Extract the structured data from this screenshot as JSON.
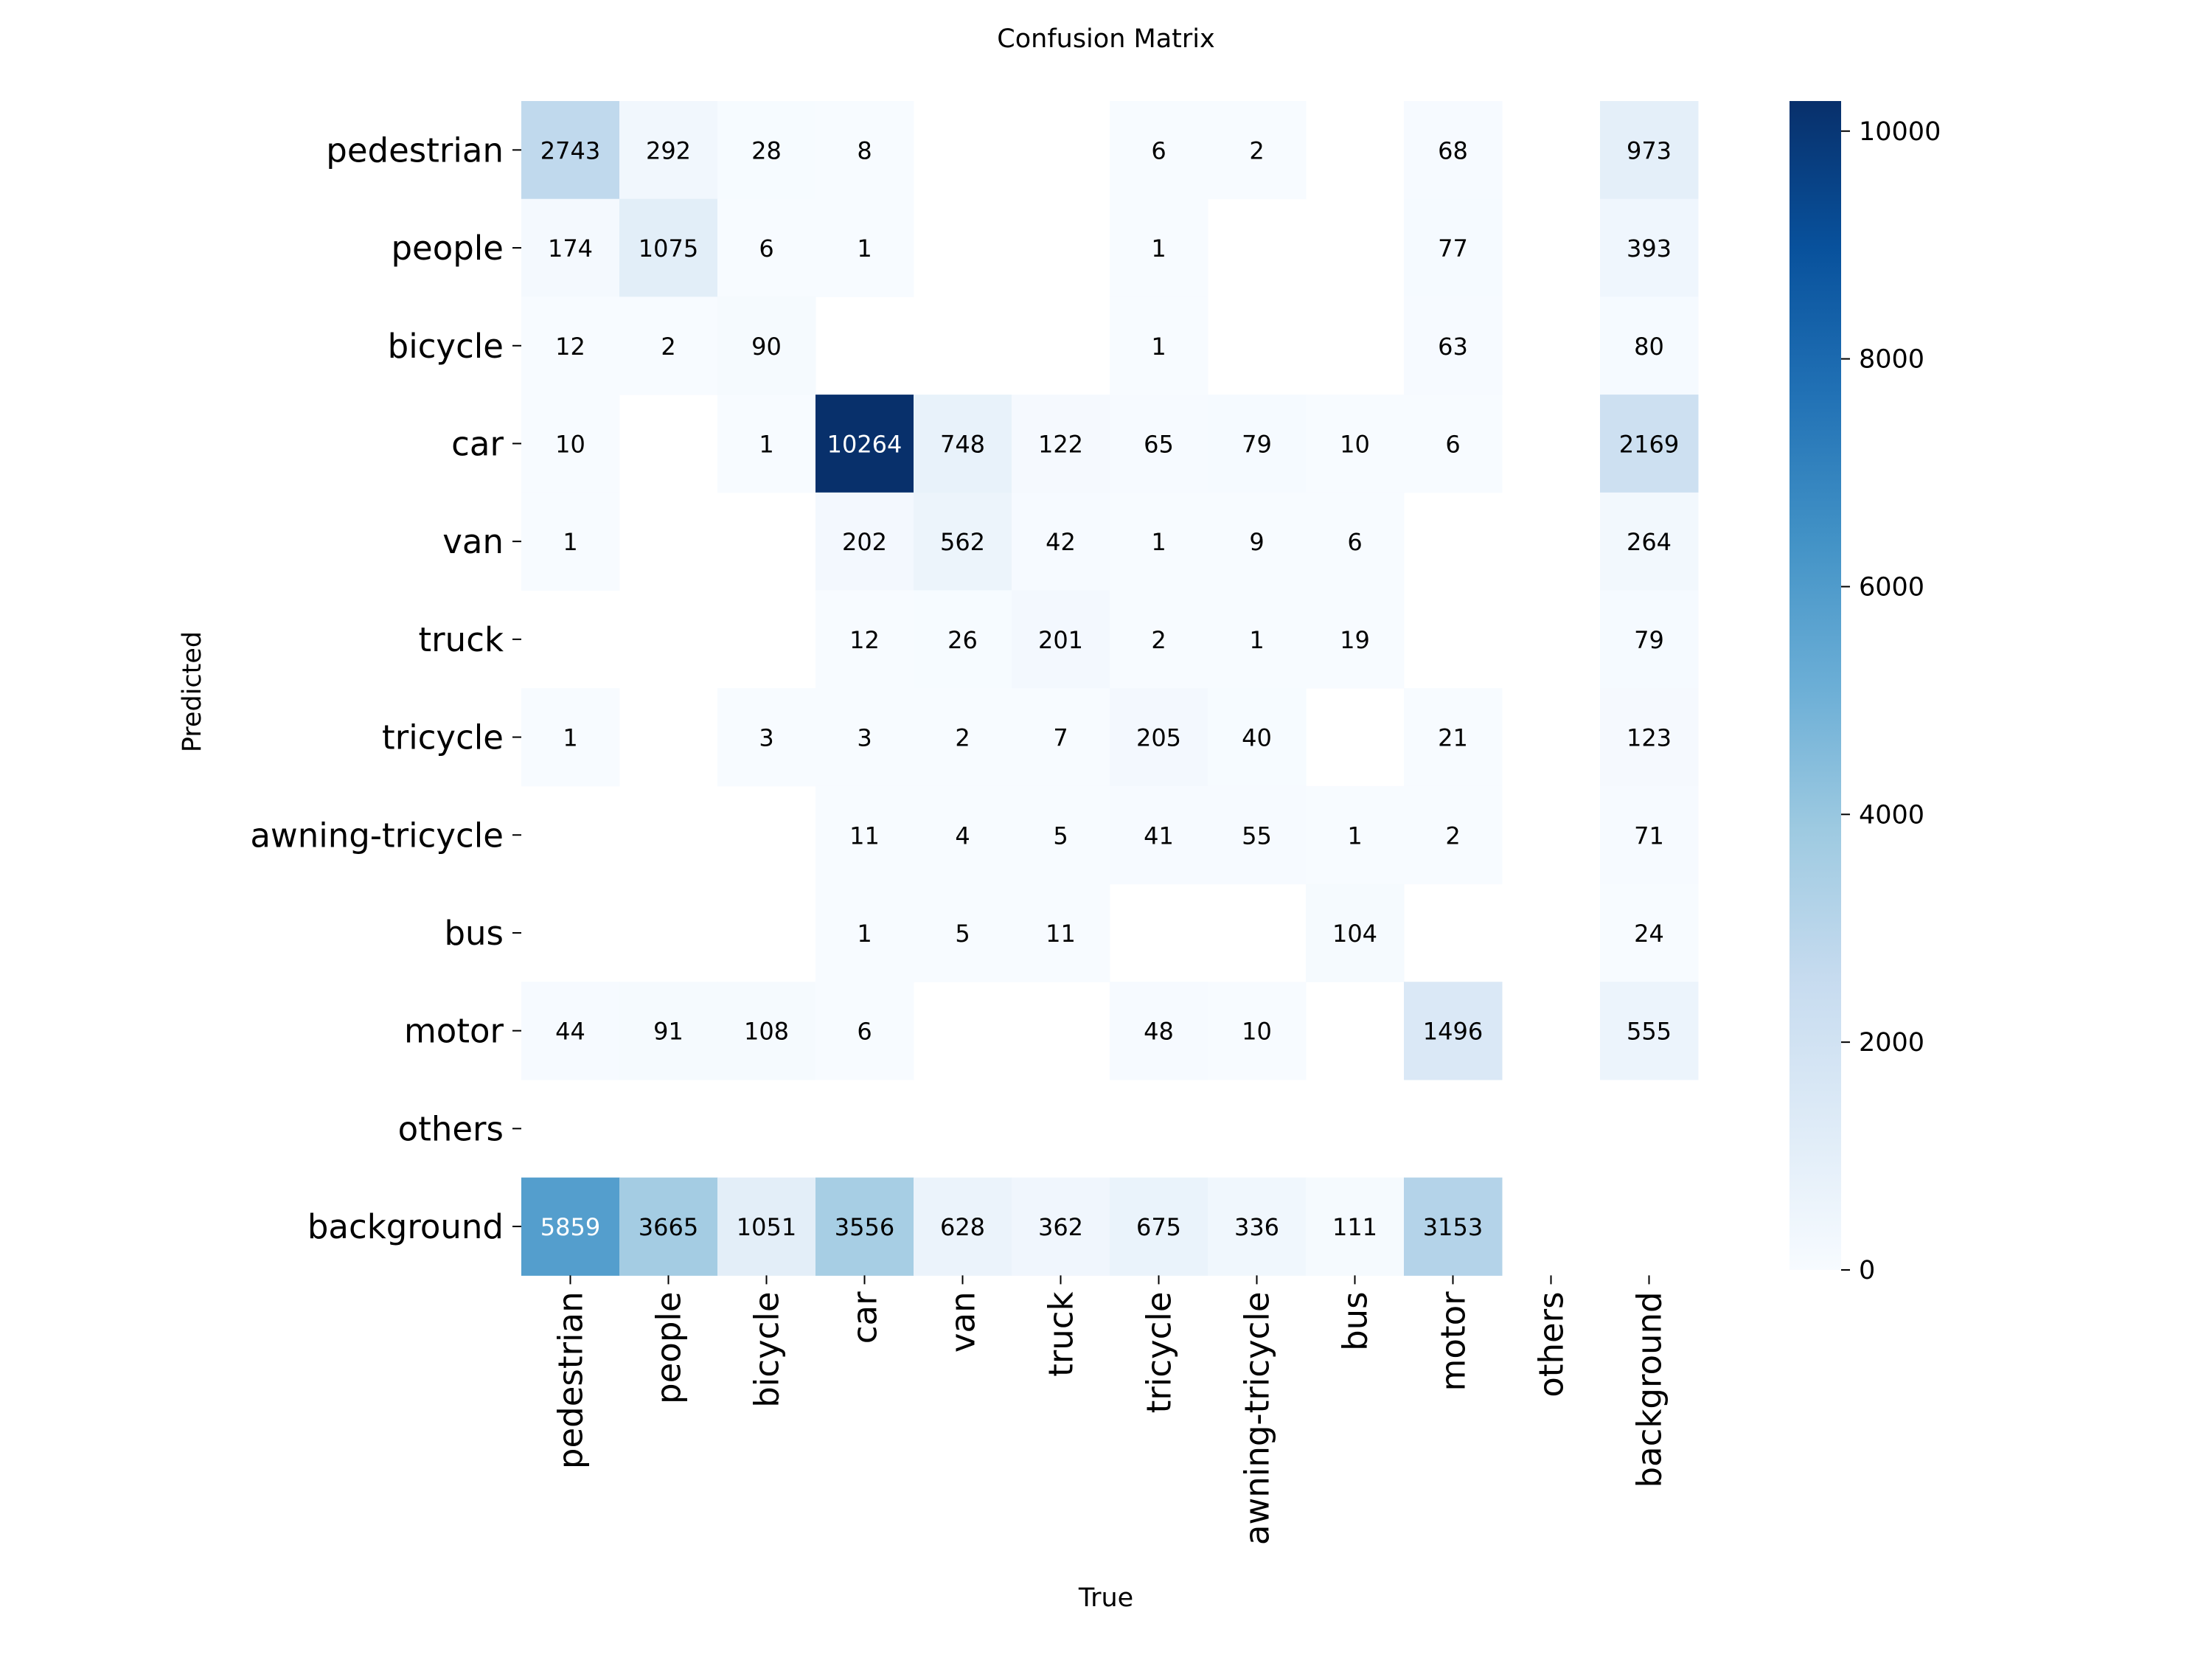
{
  "chart_data": {
    "type": "heatmap",
    "title": "Confusion Matrix",
    "xlabel": "True",
    "ylabel": "Predicted",
    "x_categories": [
      "pedestrian",
      "people",
      "bicycle",
      "car",
      "van",
      "truck",
      "tricycle",
      "awning-tricycle",
      "bus",
      "motor",
      "others",
      "background"
    ],
    "y_categories": [
      "pedestrian",
      "people",
      "bicycle",
      "car",
      "van",
      "truck",
      "tricycle",
      "awning-tricycle",
      "bus",
      "motor",
      "others",
      "background"
    ],
    "values": [
      [
        2743,
        292,
        28,
        8,
        null,
        null,
        6,
        2,
        null,
        68,
        null,
        973
      ],
      [
        174,
        1075,
        6,
        1,
        null,
        null,
        1,
        null,
        null,
        77,
        null,
        393
      ],
      [
        12,
        2,
        90,
        null,
        null,
        null,
        1,
        null,
        null,
        63,
        null,
        80
      ],
      [
        10,
        null,
        1,
        10264,
        748,
        122,
        65,
        79,
        10,
        6,
        null,
        2169
      ],
      [
        1,
        null,
        null,
        202,
        562,
        42,
        1,
        9,
        6,
        null,
        null,
        264
      ],
      [
        null,
        null,
        null,
        12,
        26,
        201,
        2,
        1,
        19,
        null,
        null,
        79
      ],
      [
        1,
        null,
        3,
        3,
        2,
        7,
        205,
        40,
        null,
        21,
        null,
        123
      ],
      [
        null,
        null,
        null,
        11,
        4,
        5,
        41,
        55,
        1,
        2,
        null,
        71
      ],
      [
        null,
        null,
        null,
        1,
        5,
        11,
        null,
        null,
        104,
        null,
        null,
        24
      ],
      [
        44,
        91,
        108,
        6,
        null,
        null,
        48,
        10,
        null,
        1496,
        null,
        555
      ],
      [
        null,
        null,
        null,
        null,
        null,
        null,
        null,
        null,
        null,
        null,
        null,
        null
      ],
      [
        5859,
        3665,
        1051,
        3556,
        628,
        362,
        675,
        336,
        111,
        3153,
        null,
        null
      ]
    ],
    "colorbar": {
      "min": 0,
      "max": 10264,
      "ticks": [
        0,
        2000,
        4000,
        6000,
        8000,
        10000
      ],
      "colormap": "Blues",
      "low_color": "#f7fbff",
      "high_color": "#08306b"
    }
  }
}
